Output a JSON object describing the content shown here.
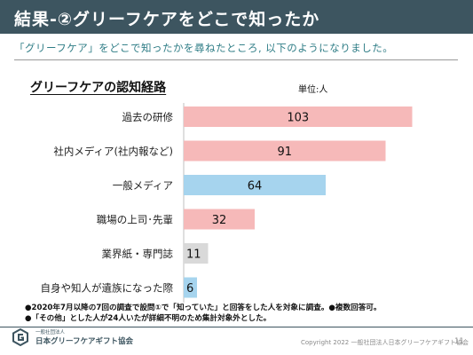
{
  "header": {
    "title": "結果-②グリーフケアをどこで知ったか"
  },
  "subtitle": "「グリーフケア」をどこで知ったかを尋ねたところ, 以下のようになりました。",
  "chart_data": {
    "type": "bar",
    "orientation": "horizontal",
    "title": "グリーフケアの認知経路",
    "unit_label": "単位:人",
    "categories": [
      "過去の研修",
      "社内メディア(社内報など)",
      "一般メディア",
      "職場の上司･先輩",
      "業界紙・専門誌",
      "自身や知人が遺族になった際"
    ],
    "values": [
      103,
      91,
      64,
      32,
      11,
      6
    ],
    "bar_colors": [
      "#f6b9b9",
      "#f6b9b9",
      "#a6d4ee",
      "#f6b9b9",
      "#d9d9d9",
      "#a6d4ee"
    ],
    "xlim": [
      0,
      112
    ],
    "grid": false,
    "legend": "none"
  },
  "notes": [
    "●2020年7月以降の7回の調査で設問①で「知っていた」と回答をした人を対象に調査。●複数回答可。",
    "●「その他」とした人が24人いたが詳細不明のため集計対象外とした。"
  ],
  "footer": {
    "org_small": "一般社団法人",
    "org_name": "日本グリーフケアギフト協会",
    "copyright": "Copyright 2022 一般社団法人日本グリーフケアギフト協会",
    "page_number": "11"
  },
  "colors": {
    "header_bg": "#3d5560",
    "subtitle": "#2f7d86"
  }
}
